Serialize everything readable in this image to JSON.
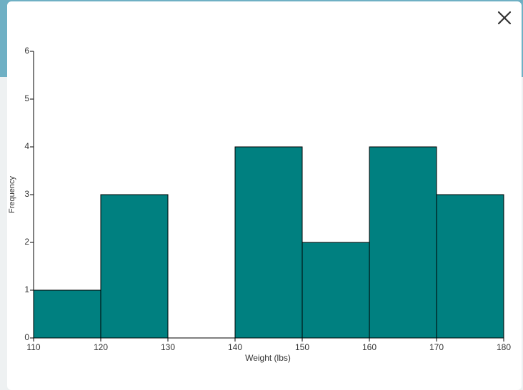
{
  "chart_data": {
    "type": "histogram",
    "xlabel": "Weight (lbs)",
    "ylabel": "Frequency",
    "bins": [
      110,
      120,
      130,
      140,
      150,
      160,
      170,
      180
    ],
    "values": [
      1,
      3,
      0,
      4,
      2,
      4,
      3
    ],
    "color": "#008080",
    "xlim": [
      110,
      180
    ],
    "xticks": [
      110,
      120,
      130,
      140,
      150,
      160,
      170,
      180
    ],
    "ylim": [
      0,
      6
    ],
    "yticks": [
      0,
      1,
      2,
      3,
      4,
      5,
      6
    ]
  }
}
